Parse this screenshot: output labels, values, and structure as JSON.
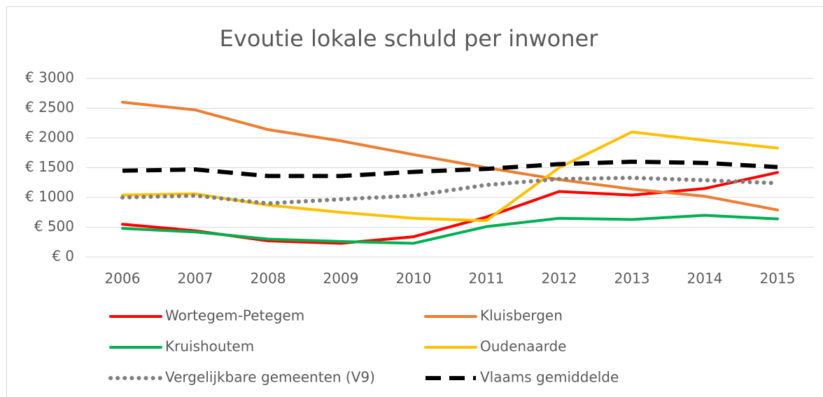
{
  "chart_data": {
    "type": "line",
    "title": "Evoutie lokale schuld per inwoner",
    "categories": [
      "2006",
      "2007",
      "2008",
      "2009",
      "2010",
      "2011",
      "2012",
      "2013",
      "2014",
      "2015"
    ],
    "ylim": [
      0,
      3000
    ],
    "yticks": [
      {
        "value": 0,
        "label": "€ 0"
      },
      {
        "value": 500,
        "label": "€ 500"
      },
      {
        "value": 1000,
        "label": "€ 1000"
      },
      {
        "value": 1500,
        "label": "€ 1500"
      },
      {
        "value": 2000,
        "label": "€ 2000"
      },
      {
        "value": 2500,
        "label": "€ 2500"
      },
      {
        "value": 3000,
        "label": "€ 3000"
      }
    ],
    "grid": true,
    "legend": "bottom",
    "series": [
      {
        "name": "Wortegem-Petegem",
        "color": "#ff0000",
        "style": "solid",
        "values": [
          550,
          440,
          270,
          230,
          340,
          670,
          1100,
          1040,
          1150,
          1420
        ]
      },
      {
        "name": "Kluisbergen",
        "color": "#ed7d31",
        "style": "solid",
        "values": [
          2600,
          2470,
          2140,
          1950,
          1720,
          1500,
          1300,
          1140,
          1020,
          790
        ]
      },
      {
        "name": "Kruishoutem",
        "color": "#00b050",
        "style": "solid",
        "values": [
          480,
          420,
          300,
          260,
          230,
          510,
          650,
          630,
          700,
          640
        ]
      },
      {
        "name": "Oudenaarde",
        "color": "#ffc000",
        "style": "solid",
        "values": [
          1040,
          1060,
          870,
          750,
          650,
          610,
          1500,
          2100,
          1960,
          1830
        ]
      },
      {
        "name": "Vergelijkbare gemeenten (V9)",
        "color": "#7f7f7f",
        "style": "dotted",
        "values": [
          1000,
          1030,
          900,
          970,
          1030,
          1210,
          1310,
          1330,
          1290,
          1240
        ]
      },
      {
        "name": "Vlaams gemiddelde",
        "color": "#000000",
        "style": "dashed",
        "values": [
          1450,
          1470,
          1360,
          1360,
          1430,
          1480,
          1560,
          1600,
          1580,
          1510
        ]
      }
    ]
  }
}
